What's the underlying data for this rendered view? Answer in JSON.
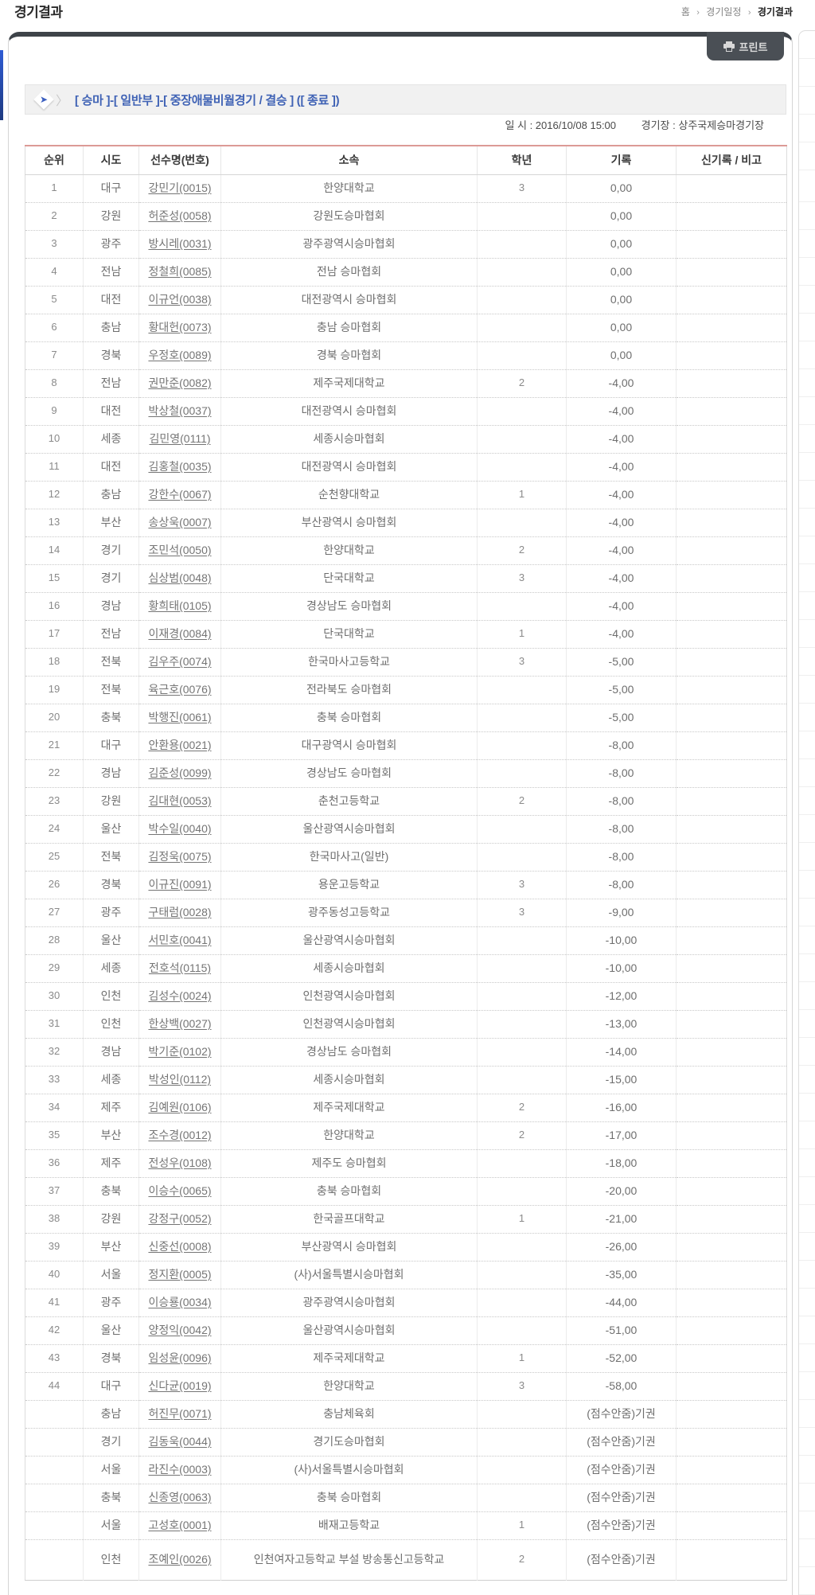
{
  "page": {
    "title": "경기결과",
    "breadcrumb": {
      "home": "홈",
      "separator": "›",
      "middle": "경기일정",
      "current": "경기결과"
    }
  },
  "toolbar": {
    "print_label": "프린트",
    "print_icon": "printer-icon"
  },
  "event": {
    "arrow_icon": "blue-arrow-icon",
    "title": "[ 승마 ]-[ 일반부 ]-[ 중장애물비월경기 / 결승 ] ([ 종료 ])",
    "datetime": "일 시 : 2016/10/08 15:00",
    "venue": "경기장 : 상주국제승마경기장"
  },
  "colors": {
    "accent_blue": "#3f62b5",
    "dark_bar": "#3e4349",
    "table_top_border": "#dc9a96",
    "link_gray": "#757575"
  },
  "table": {
    "headers": [
      "순위",
      "시도",
      "선수명(번호)",
      "소속",
      "학년",
      "기록",
      "신기록 / 비고"
    ],
    "rows": [
      {
        "rank": "1",
        "sido": "대구",
        "name": "강민기(0015)",
        "team": "한양대학교",
        "grade": "3",
        "record": "0,00",
        "note": ""
      },
      {
        "rank": "2",
        "sido": "강원",
        "name": "허준성(0058)",
        "team": "강원도승마협회",
        "grade": "",
        "record": "0,00",
        "note": ""
      },
      {
        "rank": "3",
        "sido": "광주",
        "name": "방시레(0031)",
        "team": "광주광역시승마협회",
        "grade": "",
        "record": "0,00",
        "note": ""
      },
      {
        "rank": "4",
        "sido": "전남",
        "name": "정철희(0085)",
        "team": "전남 승마협회",
        "grade": "",
        "record": "0,00",
        "note": ""
      },
      {
        "rank": "5",
        "sido": "대전",
        "name": "이규언(0038)",
        "team": "대전광역시 승마협회",
        "grade": "",
        "record": "0,00",
        "note": ""
      },
      {
        "rank": "6",
        "sido": "충남",
        "name": "황대헌(0073)",
        "team": "충남 승마협회",
        "grade": "",
        "record": "0,00",
        "note": ""
      },
      {
        "rank": "7",
        "sido": "경북",
        "name": "우정호(0089)",
        "team": "경북 승마협회",
        "grade": "",
        "record": "0,00",
        "note": ""
      },
      {
        "rank": "8",
        "sido": "전남",
        "name": "권만준(0082)",
        "team": "제주국제대학교",
        "grade": "2",
        "record": "-4,00",
        "note": ""
      },
      {
        "rank": "9",
        "sido": "대전",
        "name": "박상철(0037)",
        "team": "대전광역시 승마협회",
        "grade": "",
        "record": "-4,00",
        "note": ""
      },
      {
        "rank": "10",
        "sido": "세종",
        "name": "김민영(0111)",
        "team": "세종시승마협회",
        "grade": "",
        "record": "-4,00",
        "note": ""
      },
      {
        "rank": "11",
        "sido": "대전",
        "name": "김홍철(0035)",
        "team": "대전광역시 승마협회",
        "grade": "",
        "record": "-4,00",
        "note": ""
      },
      {
        "rank": "12",
        "sido": "충남",
        "name": "강한수(0067)",
        "team": "순천향대학교",
        "grade": "1",
        "record": "-4,00",
        "note": ""
      },
      {
        "rank": "13",
        "sido": "부산",
        "name": "송상욱(0007)",
        "team": "부산광역시 승마협회",
        "grade": "",
        "record": "-4,00",
        "note": ""
      },
      {
        "rank": "14",
        "sido": "경기",
        "name": "조민석(0050)",
        "team": "한양대학교",
        "grade": "2",
        "record": "-4,00",
        "note": ""
      },
      {
        "rank": "15",
        "sido": "경기",
        "name": "심상범(0048)",
        "team": "단국대학교",
        "grade": "3",
        "record": "-4,00",
        "note": ""
      },
      {
        "rank": "16",
        "sido": "경남",
        "name": "황희태(0105)",
        "team": "경상남도 승마협회",
        "grade": "",
        "record": "-4,00",
        "note": ""
      },
      {
        "rank": "17",
        "sido": "전남",
        "name": "이재경(0084)",
        "team": "단국대학교",
        "grade": "1",
        "record": "-4,00",
        "note": ""
      },
      {
        "rank": "18",
        "sido": "전북",
        "name": "김우주(0074)",
        "team": "한국마사고등학교",
        "grade": "3",
        "record": "-5,00",
        "note": ""
      },
      {
        "rank": "19",
        "sido": "전북",
        "name": "육근호(0076)",
        "team": "전라북도 승마협회",
        "grade": "",
        "record": "-5,00",
        "note": ""
      },
      {
        "rank": "20",
        "sido": "충북",
        "name": "박행진(0061)",
        "team": "충북 승마협회",
        "grade": "",
        "record": "-5,00",
        "note": ""
      },
      {
        "rank": "21",
        "sido": "대구",
        "name": "안환용(0021)",
        "team": "대구광역시 승마협회",
        "grade": "",
        "record": "-8,00",
        "note": ""
      },
      {
        "rank": "22",
        "sido": "경남",
        "name": "김준성(0099)",
        "team": "경상남도 승마협회",
        "grade": "",
        "record": "-8,00",
        "note": ""
      },
      {
        "rank": "23",
        "sido": "강원",
        "name": "김대현(0053)",
        "team": "춘천고등학교",
        "grade": "2",
        "record": "-8,00",
        "note": ""
      },
      {
        "rank": "24",
        "sido": "울산",
        "name": "박수일(0040)",
        "team": "울산광역시승마협회",
        "grade": "",
        "record": "-8,00",
        "note": ""
      },
      {
        "rank": "25",
        "sido": "전북",
        "name": "김정욱(0075)",
        "team": "한국마사고(일반)",
        "grade": "",
        "record": "-8,00",
        "note": ""
      },
      {
        "rank": "26",
        "sido": "경북",
        "name": "이규진(0091)",
        "team": "용운고등학교",
        "grade": "3",
        "record": "-8,00",
        "note": ""
      },
      {
        "rank": "27",
        "sido": "광주",
        "name": "구태럼(0028)",
        "team": "광주동성고등학교",
        "grade": "3",
        "record": "-9,00",
        "note": ""
      },
      {
        "rank": "28",
        "sido": "울산",
        "name": "서민호(0041)",
        "team": "울산광역시승마협회",
        "grade": "",
        "record": "-10,00",
        "note": ""
      },
      {
        "rank": "29",
        "sido": "세종",
        "name": "전호석(0115)",
        "team": "세종시승마협회",
        "grade": "",
        "record": "-10,00",
        "note": ""
      },
      {
        "rank": "30",
        "sido": "인천",
        "name": "김성수(0024)",
        "team": "인천광역시승마협회",
        "grade": "",
        "record": "-12,00",
        "note": ""
      },
      {
        "rank": "31",
        "sido": "인천",
        "name": "한상백(0027)",
        "team": "인천광역시승마협회",
        "grade": "",
        "record": "-13,00",
        "note": ""
      },
      {
        "rank": "32",
        "sido": "경남",
        "name": "박기준(0102)",
        "team": "경상남도 승마협회",
        "grade": "",
        "record": "-14,00",
        "note": ""
      },
      {
        "rank": "33",
        "sido": "세종",
        "name": "박성인(0112)",
        "team": "세종시승마협회",
        "grade": "",
        "record": "-15,00",
        "note": ""
      },
      {
        "rank": "34",
        "sido": "제주",
        "name": "김예원(0106)",
        "team": "제주국제대학교",
        "grade": "2",
        "record": "-16,00",
        "note": ""
      },
      {
        "rank": "35",
        "sido": "부산",
        "name": "조수경(0012)",
        "team": "한양대학교",
        "grade": "2",
        "record": "-17,00",
        "note": ""
      },
      {
        "rank": "36",
        "sido": "제주",
        "name": "전성우(0108)",
        "team": "제주도 승마협회",
        "grade": "",
        "record": "-18,00",
        "note": ""
      },
      {
        "rank": "37",
        "sido": "충북",
        "name": "이승수(0065)",
        "team": "충북 승마협회",
        "grade": "",
        "record": "-20,00",
        "note": ""
      },
      {
        "rank": "38",
        "sido": "강원",
        "name": "강정구(0052)",
        "team": "한국골프대학교",
        "grade": "1",
        "record": "-21,00",
        "note": ""
      },
      {
        "rank": "39",
        "sido": "부산",
        "name": "신중선(0008)",
        "team": "부산광역시 승마협회",
        "grade": "",
        "record": "-26,00",
        "note": ""
      },
      {
        "rank": "40",
        "sido": "서울",
        "name": "정지환(0005)",
        "team": "(사)서울특별시승마협회",
        "grade": "",
        "record": "-35,00",
        "note": ""
      },
      {
        "rank": "41",
        "sido": "광주",
        "name": "이승룡(0034)",
        "team": "광주광역시승마협회",
        "grade": "",
        "record": "-44,00",
        "note": ""
      },
      {
        "rank": "42",
        "sido": "울산",
        "name": "양정익(0042)",
        "team": "울산광역시승마협회",
        "grade": "",
        "record": "-51,00",
        "note": ""
      },
      {
        "rank": "43",
        "sido": "경북",
        "name": "임성윤(0096)",
        "team": "제주국제대학교",
        "grade": "1",
        "record": "-52,00",
        "note": ""
      },
      {
        "rank": "44",
        "sido": "대구",
        "name": "신다균(0019)",
        "team": "한양대학교",
        "grade": "3",
        "record": "-58,00",
        "note": ""
      },
      {
        "rank": "",
        "sido": "충남",
        "name": "허진무(0071)",
        "team": "충남체육회",
        "grade": "",
        "record": "(점수안줌)기권",
        "note": ""
      },
      {
        "rank": "",
        "sido": "경기",
        "name": "김동욱(0044)",
        "team": "경기도승마협회",
        "grade": "",
        "record": "(점수안줌)기권",
        "note": ""
      },
      {
        "rank": "",
        "sido": "서울",
        "name": "라진수(0003)",
        "team": "(사)서울특별시승마협회",
        "grade": "",
        "record": "(점수안줌)기권",
        "note": ""
      },
      {
        "rank": "",
        "sido": "충북",
        "name": "신종영(0063)",
        "team": "충북 승마협회",
        "grade": "",
        "record": "(점수안줌)기권",
        "note": ""
      },
      {
        "rank": "",
        "sido": "서울",
        "name": "고성호(0001)",
        "team": "배재고등학교",
        "grade": "1",
        "record": "(점수안줌)기권",
        "note": ""
      },
      {
        "rank": "",
        "sido": "인천",
        "name": "조예인(0026)",
        "team": "인천여자고등학교 부설 방송통신고등학교",
        "grade": "2",
        "record": "(점수안줌)기권",
        "note": ""
      }
    ]
  }
}
